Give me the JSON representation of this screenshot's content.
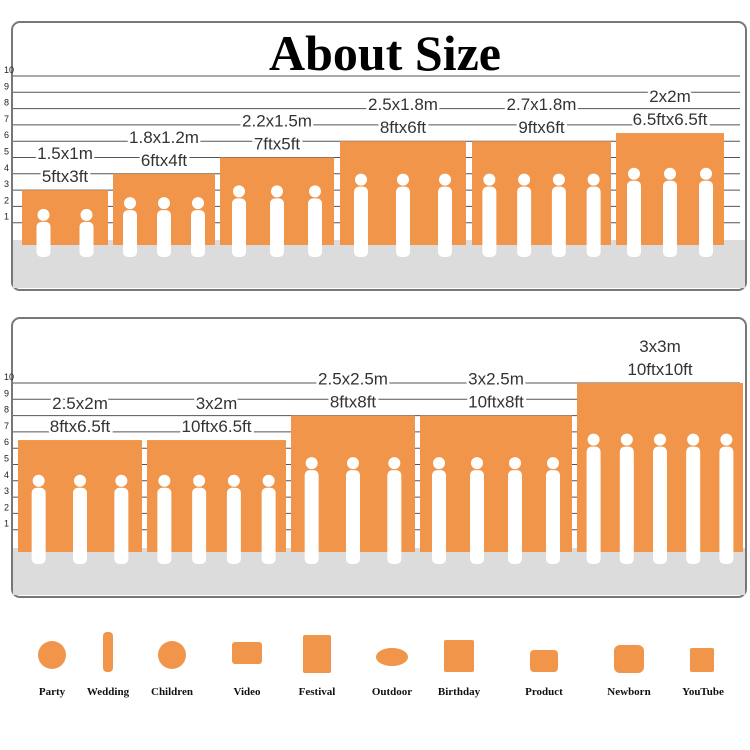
{
  "title": "About Size",
  "panels": [
    {
      "ruler": [
        1,
        2,
        3,
        4,
        5,
        6,
        7,
        8,
        9,
        10
      ],
      "items": [
        {
          "metric": "1.5x1m",
          "imperial": "5ftx3ft",
          "height": 3
        },
        {
          "metric": "1.8x1.2m",
          "imperial": "6ftx4ft",
          "height": 4
        },
        {
          "metric": "2.2x1.5m",
          "imperial": "7ftx5ft",
          "height": 5
        },
        {
          "metric": "2.5x1.8m",
          "imperial": "8ftx6ft",
          "height": 6
        },
        {
          "metric": "2.7x1.8m",
          "imperial": "9ftx6ft",
          "height": 6
        },
        {
          "metric": "2x2m",
          "imperial": "6.5ftx6.5ft",
          "height": 6.5
        }
      ]
    },
    {
      "ruler": [
        1,
        2,
        3,
        4,
        5,
        6,
        7,
        8,
        9,
        10
      ],
      "items": [
        {
          "metric": "2.5x2m",
          "imperial": "8ftx6.5ft",
          "height": 6.5
        },
        {
          "metric": "3x2m",
          "imperial": "10ftx6.5ft",
          "height": 6.5
        },
        {
          "metric": "2.5x2.5m",
          "imperial": "8ftx8ft",
          "height": 8
        },
        {
          "metric": "3x2.5m",
          "imperial": "10ftx8ft",
          "height": 8
        },
        {
          "metric": "3x3m",
          "imperial": "10ftx10ft",
          "height": 10
        }
      ]
    }
  ],
  "uses": [
    "Party",
    "Wedding",
    "Children",
    "Video",
    "Festival",
    "Outdoor",
    "Birthday",
    "Product",
    "Newborn",
    "YouTube"
  ]
}
